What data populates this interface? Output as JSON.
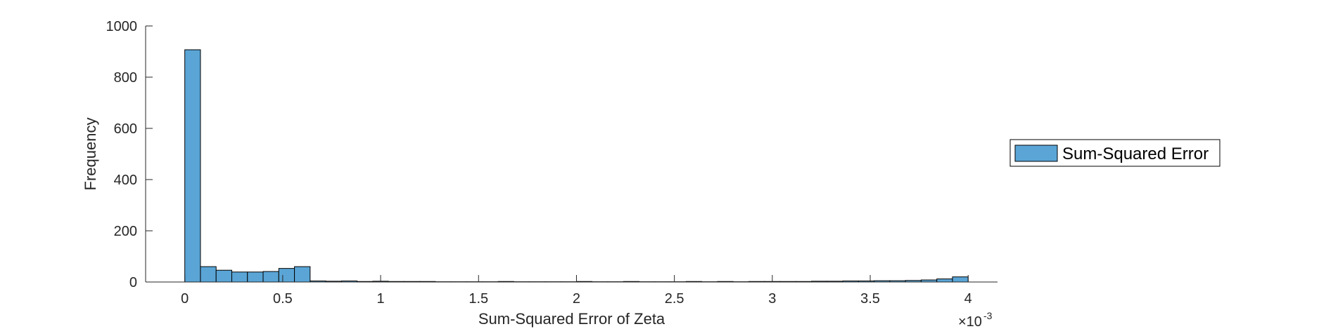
{
  "chart_data": {
    "type": "bar",
    "title": "",
    "xlabel": "Sum-Squared Error of Zeta",
    "ylabel": "Frequency",
    "x_exponent_base": "×10",
    "x_exponent_power": "-3",
    "x_scale": 0.001,
    "xlim": [
      -0.2,
      4.15
    ],
    "ylim": [
      0,
      1000
    ],
    "bin_width": 0.08,
    "bin_start": 0,
    "xticks": [
      0,
      0.5,
      1,
      1.5,
      2,
      2.5,
      3,
      3.5,
      4
    ],
    "xtick_labels": [
      "0",
      "0.5",
      "1",
      "1.5",
      "2",
      "2.5",
      "3",
      "3.5",
      "4"
    ],
    "yticks": [
      0,
      200,
      400,
      600,
      800,
      1000
    ],
    "ytick_labels": [
      "0",
      "200",
      "400",
      "600",
      "800",
      "1000"
    ],
    "series": [
      {
        "name": "Sum-Squared Error",
        "color": "#5aa5d6",
        "values": [
          907,
          60,
          46,
          39,
          39,
          41,
          53,
          60,
          4,
          3,
          4,
          2,
          3,
          2,
          2,
          2,
          1,
          1,
          1,
          1,
          2,
          1,
          1,
          1,
          1,
          2,
          1,
          1,
          2,
          1,
          1,
          1,
          2,
          1,
          2,
          1,
          2,
          2,
          2,
          2,
          3,
          3,
          4,
          4,
          5,
          5,
          6,
          8,
          12,
          20
        ]
      }
    ],
    "legend": {
      "placement": "outside-right",
      "entries": [
        "Sum-Squared Error"
      ]
    },
    "grid": false
  }
}
